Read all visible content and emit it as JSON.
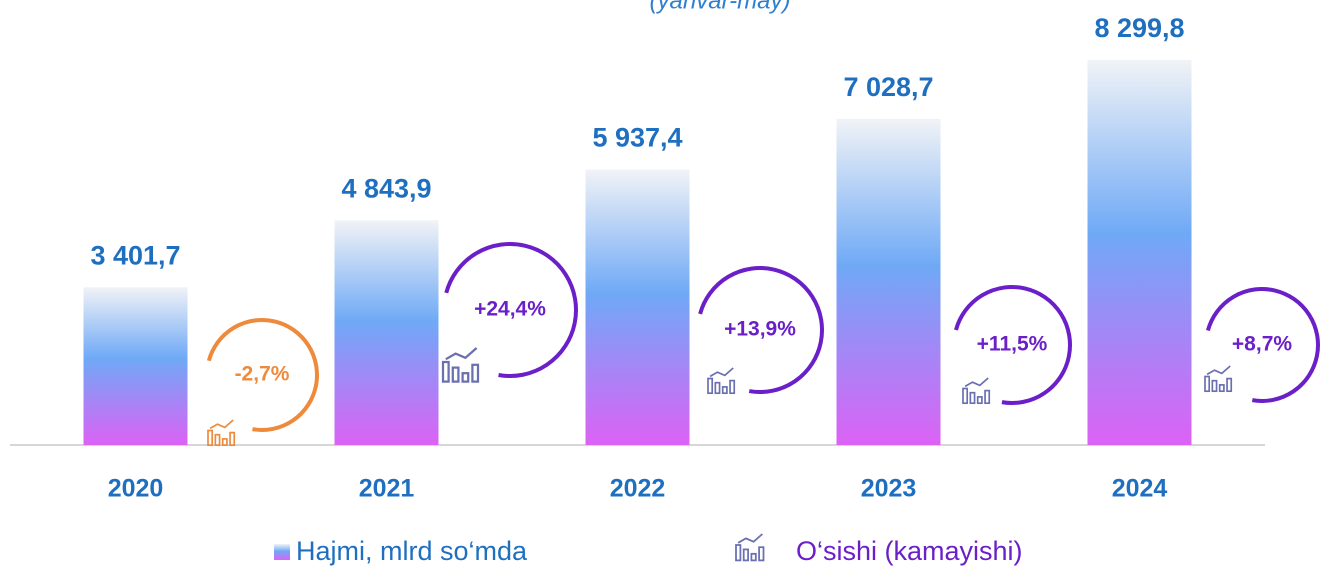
{
  "chart_data": {
    "type": "bar",
    "subtitle": "(yanvar-may)",
    "categories": [
      "2020",
      "2021",
      "2022",
      "2023",
      "2024"
    ],
    "series": [
      {
        "name": "Hajmi, mlrd so‘mda",
        "color": "#6aaaf5",
        "values": [
          3401.7,
          4843.9,
          5937.4,
          7028.7,
          8299.8
        ],
        "value_labels": [
          "3 401,7",
          "4 843,9",
          "5 937,4",
          "7 028,7",
          "8 299,8"
        ]
      },
      {
        "name": "O‘sishi (kamayishi)",
        "color": "#6a1fc8",
        "values": [
          -2.7,
          24.4,
          13.9,
          11.5,
          8.7
        ],
        "value_labels": [
          "-2,7%",
          "+24,4%",
          "+13,9%",
          "+11,5%",
          "+8,7%"
        ]
      }
    ],
    "negative_color": "#ee8a3c",
    "ylim": [
      0,
      9000
    ]
  }
}
